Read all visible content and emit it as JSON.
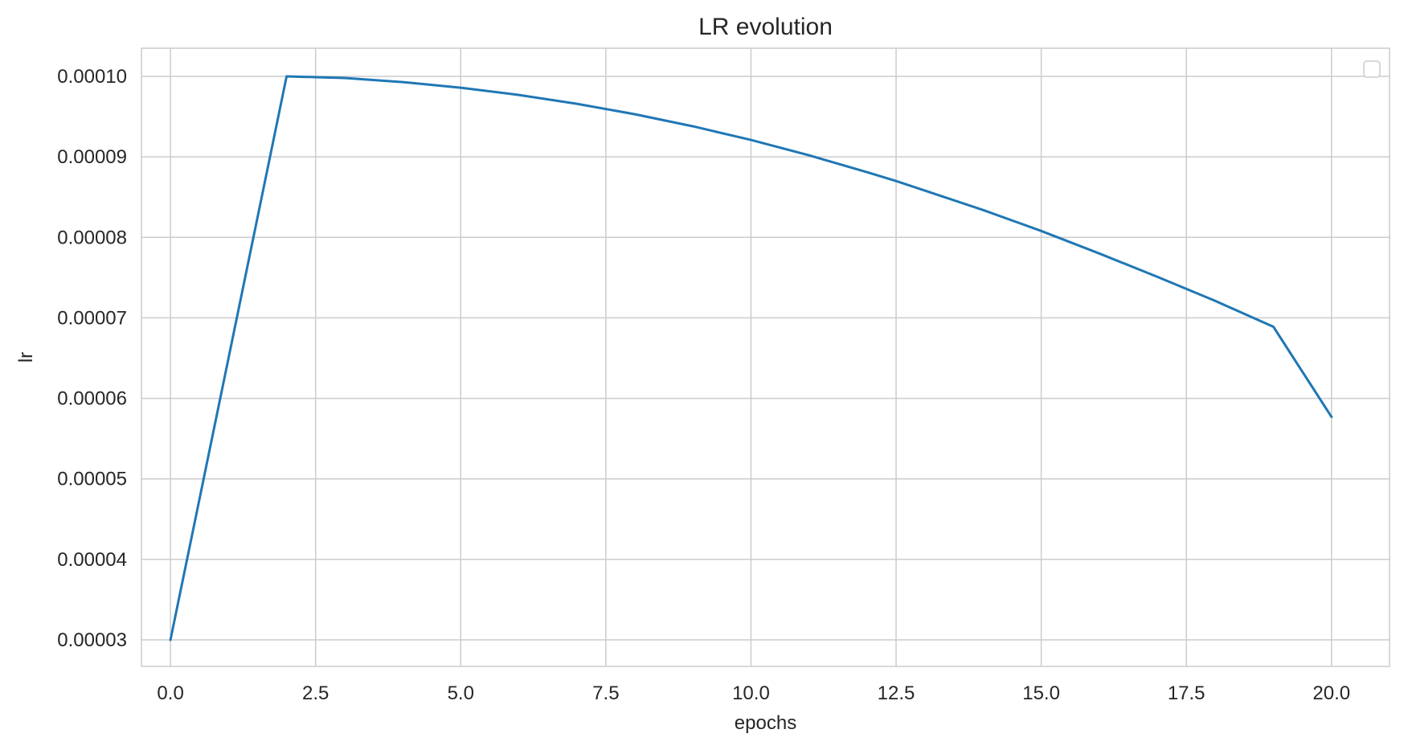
{
  "chart_data": {
    "type": "line",
    "title": "LR evolution",
    "xlabel": "epochs",
    "ylabel": "lr",
    "xlim": [
      -0.5,
      21.0
    ],
    "ylim": [
      2.67e-05,
      0.0001035
    ],
    "grid": true,
    "legend": {
      "placement": "top-right",
      "entries": []
    },
    "xticks": [
      0.0,
      2.5,
      5.0,
      7.5,
      10.0,
      12.5,
      15.0,
      17.5,
      20.0
    ],
    "xtick_labels": [
      "0.0",
      "2.5",
      "5.0",
      "7.5",
      "10.0",
      "12.5",
      "15.0",
      "17.5",
      "20.0"
    ],
    "yticks": [
      3e-05,
      4e-05,
      5e-05,
      6e-05,
      7e-05,
      8e-05,
      9e-05,
      0.0001
    ],
    "ytick_labels": [
      "0.00003",
      "0.00004",
      "0.00005",
      "0.00006",
      "0.00007",
      "0.00008",
      "0.00009",
      "0.00010"
    ],
    "series": [
      {
        "color": "#1f77b4",
        "x": [
          0.0,
          2.0,
          2.5,
          3.0,
          4.0,
          5.0,
          6.0,
          7.0,
          8.0,
          9.0,
          10.0,
          11.0,
          12.0,
          12.5,
          13.0,
          14.0,
          15.0,
          16.0,
          17.0,
          18.0,
          19.0,
          20.0
        ],
        "y": [
          3e-05,
          0.0001,
          9.99e-05,
          9.98e-05,
          9.93e-05,
          9.86e-05,
          9.77e-05,
          9.66e-05,
          9.53e-05,
          9.38e-05,
          9.21e-05,
          9.02e-05,
          8.81e-05,
          8.7e-05,
          8.58e-05,
          8.34e-05,
          8.08e-05,
          7.8e-05,
          7.51e-05,
          7.21e-05,
          6.89e-05,
          5.77e-05
        ]
      }
    ]
  }
}
